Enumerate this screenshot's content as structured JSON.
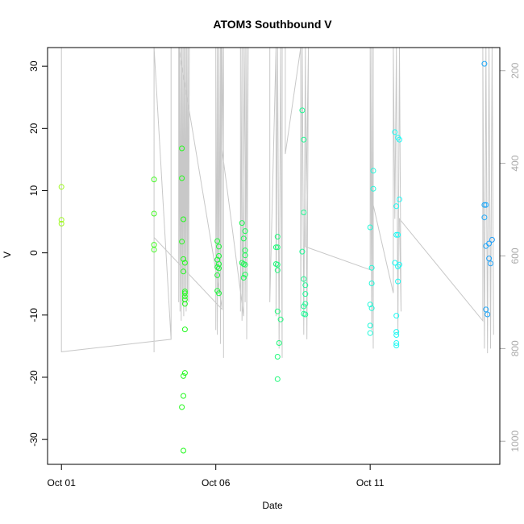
{
  "chart_data": {
    "type": "scatter",
    "title": "ATOM3 Southbound V",
    "xlabel": "Date",
    "ylabel": "V",
    "x_ticks": [
      {
        "day": 1,
        "label": "Oct 01"
      },
      {
        "day": 6,
        "label": "Oct 06"
      },
      {
        "day": 11,
        "label": "Oct 11"
      }
    ],
    "xlim_day": [
      0.55,
      15.2
    ],
    "y_ticks": [
      -30,
      -20,
      -10,
      0,
      10,
      20,
      30
    ],
    "ylim": [
      -34,
      33
    ],
    "right_axis": {
      "ticks": [
        200,
        400,
        600,
        800,
        1000
      ],
      "lim": [
        1050,
        150
      ],
      "color": "#aaaaaa"
    },
    "points_day_v": [
      [
        1.0,
        10.6
      ],
      [
        1.0,
        5.3
      ],
      [
        1.0,
        4.7
      ],
      [
        4.0,
        11.8
      ],
      [
        4.0,
        6.3
      ],
      [
        4.0,
        1.3
      ],
      [
        4.0,
        0.5
      ],
      [
        4.9,
        16.8
      ],
      [
        4.9,
        12.0
      ],
      [
        4.95,
        5.4
      ],
      [
        4.9,
        1.8
      ],
      [
        4.95,
        -1.0
      ],
      [
        4.95,
        -3.0
      ],
      [
        5.0,
        -1.6
      ],
      [
        5.0,
        -6.5
      ],
      [
        5.0,
        -7.0
      ],
      [
        5.0,
        -7.5
      ],
      [
        5.0,
        -8.2
      ],
      [
        5.0,
        -6.2
      ],
      [
        5.0,
        -12.3
      ],
      [
        4.95,
        -19.8
      ],
      [
        5.0,
        -19.3
      ],
      [
        4.95,
        -23.0
      ],
      [
        4.9,
        -24.8
      ],
      [
        4.95,
        -31.8
      ],
      [
        6.05,
        1.9
      ],
      [
        6.1,
        1.0
      ],
      [
        6.1,
        -0.5
      ],
      [
        6.05,
        -1.1
      ],
      [
        6.1,
        -1.8
      ],
      [
        6.05,
        -2.3
      ],
      [
        6.1,
        -2.5
      ],
      [
        6.05,
        -3.6
      ],
      [
        6.05,
        -6.1
      ],
      [
        6.1,
        -6.5
      ],
      [
        6.85,
        4.8
      ],
      [
        6.95,
        3.5
      ],
      [
        6.9,
        2.3
      ],
      [
        6.95,
        0.4
      ],
      [
        6.95,
        -0.4
      ],
      [
        6.85,
        -1.6
      ],
      [
        6.9,
        -1.8
      ],
      [
        6.95,
        -1.9
      ],
      [
        6.95,
        -3.5
      ],
      [
        6.9,
        -4.0
      ],
      [
        8.0,
        2.6
      ],
      [
        8.0,
        0.9
      ],
      [
        7.95,
        0.9
      ],
      [
        8.0,
        -1.9
      ],
      [
        7.95,
        -1.8
      ],
      [
        8.0,
        -2.8
      ],
      [
        8.0,
        -9.4
      ],
      [
        8.05,
        -14.5
      ],
      [
        8.0,
        -16.7
      ],
      [
        8.0,
        -20.3
      ],
      [
        8.1,
        -10.7
      ],
      [
        8.8,
        22.9
      ],
      [
        8.85,
        18.2
      ],
      [
        8.85,
        6.5
      ],
      [
        8.8,
        0.2
      ],
      [
        8.85,
        -4.2
      ],
      [
        8.9,
        -5.2
      ],
      [
        8.9,
        -6.6
      ],
      [
        8.85,
        -8.6
      ],
      [
        8.9,
        -8.2
      ],
      [
        8.85,
        -9.8
      ],
      [
        8.9,
        -9.9
      ],
      [
        11.0,
        4.1
      ],
      [
        11.1,
        13.2
      ],
      [
        11.1,
        10.3
      ],
      [
        11.05,
        -2.4
      ],
      [
        11.05,
        -4.9
      ],
      [
        11.0,
        -8.3
      ],
      [
        11.05,
        -8.9
      ],
      [
        11.0,
        -11.7
      ],
      [
        11.0,
        -12.9
      ],
      [
        11.8,
        19.4
      ],
      [
        11.9,
        18.5
      ],
      [
        11.95,
        18.2
      ],
      [
        11.85,
        7.5
      ],
      [
        11.95,
        8.6
      ],
      [
        11.85,
        2.9
      ],
      [
        11.9,
        2.9
      ],
      [
        11.8,
        -1.6
      ],
      [
        11.95,
        -1.9
      ],
      [
        11.9,
        -2.2
      ],
      [
        11.9,
        -4.6
      ],
      [
        11.85,
        -10.1
      ],
      [
        11.85,
        -12.7
      ],
      [
        11.85,
        -13.2
      ],
      [
        11.85,
        -14.5
      ],
      [
        11.85,
        -14.9
      ],
      [
        14.7,
        30.4
      ],
      [
        14.75,
        7.7
      ],
      [
        14.7,
        7.7
      ],
      [
        14.7,
        5.7
      ],
      [
        14.75,
        1.1
      ],
      [
        14.85,
        1.5
      ],
      [
        14.95,
        2.1
      ],
      [
        14.85,
        -0.9
      ],
      [
        14.9,
        -1.7
      ],
      [
        14.75,
        -9.1
      ],
      [
        14.8,
        -9.9
      ]
    ],
    "line_right_axis_day_value": [
      [
        1.0,
        150
      ],
      [
        1.0,
        807
      ],
      [
        4.55,
        780
      ],
      [
        4.55,
        150
      ],
      [
        4.55,
        780
      ],
      [
        4.0,
        150
      ],
      [
        4.0,
        808
      ],
      [
        4.0,
        560
      ],
      [
        6.2,
        715
      ],
      [
        6.2,
        150
      ],
      [
        6.2,
        712
      ],
      [
        4.8,
        150
      ],
      [
        4.8,
        700
      ],
      [
        4.82,
        150
      ],
      [
        4.84,
        720
      ],
      [
        4.86,
        150
      ],
      [
        4.88,
        740
      ],
      [
        4.9,
        150
      ],
      [
        4.92,
        700
      ],
      [
        4.94,
        150
      ],
      [
        4.96,
        730
      ],
      [
        4.98,
        150
      ],
      [
        5.0,
        690
      ],
      [
        5.02,
        150
      ],
      [
        5.04,
        720
      ],
      [
        5.06,
        150
      ],
      [
        5.08,
        680
      ],
      [
        5.1,
        150
      ],
      [
        5.12,
        700
      ],
      [
        5.14,
        150
      ],
      [
        6.0,
        150
      ],
      [
        6.0,
        760
      ],
      [
        6.05,
        150
      ],
      [
        6.05,
        770
      ],
      [
        6.1,
        150
      ],
      [
        6.1,
        680
      ],
      [
        6.15,
        150
      ],
      [
        6.15,
        790
      ],
      [
        6.18,
        150
      ],
      [
        6.25,
        150
      ],
      [
        6.25,
        820
      ],
      [
        6.25,
        150
      ],
      [
        6.2,
        370
      ],
      [
        6.9,
        730
      ],
      [
        6.9,
        150
      ],
      [
        6.8,
        150
      ],
      [
        6.8,
        720
      ],
      [
        6.85,
        150
      ],
      [
        6.85,
        740
      ],
      [
        6.95,
        150
      ],
      [
        6.95,
        700
      ],
      [
        7.0,
        150
      ],
      [
        7.0,
        780
      ],
      [
        7.05,
        150
      ],
      [
        7.75,
        150
      ],
      [
        7.75,
        700
      ],
      [
        7.95,
        150
      ],
      [
        7.95,
        730
      ],
      [
        8.0,
        150
      ],
      [
        8.05,
        800
      ],
      [
        8.1,
        150
      ],
      [
        8.15,
        820
      ],
      [
        8.15,
        150
      ],
      [
        8.25,
        150
      ],
      [
        8.25,
        380
      ],
      [
        8.75,
        150
      ],
      [
        8.75,
        720
      ],
      [
        8.8,
        150
      ],
      [
        8.85,
        770
      ],
      [
        8.9,
        150
      ],
      [
        8.95,
        780
      ],
      [
        9.0,
        150
      ],
      [
        8.9,
        580
      ],
      [
        11.0,
        630
      ],
      [
        11.0,
        150
      ],
      [
        11.05,
        760
      ],
      [
        11.05,
        150
      ],
      [
        11.1,
        800
      ],
      [
        11.1,
        150
      ],
      [
        11.1,
        490
      ],
      [
        11.75,
        680
      ],
      [
        11.75,
        150
      ],
      [
        11.8,
        520
      ],
      [
        11.85,
        150
      ],
      [
        11.9,
        770
      ],
      [
        11.95,
        150
      ],
      [
        12.0,
        720
      ],
      [
        11.95,
        520
      ],
      [
        14.65,
        740
      ],
      [
        14.65,
        150
      ],
      [
        14.7,
        800
      ],
      [
        14.75,
        150
      ],
      [
        14.8,
        810
      ],
      [
        14.85,
        150
      ],
      [
        14.9,
        800
      ],
      [
        14.95,
        150
      ],
      [
        15.0,
        770
      ]
    ]
  }
}
